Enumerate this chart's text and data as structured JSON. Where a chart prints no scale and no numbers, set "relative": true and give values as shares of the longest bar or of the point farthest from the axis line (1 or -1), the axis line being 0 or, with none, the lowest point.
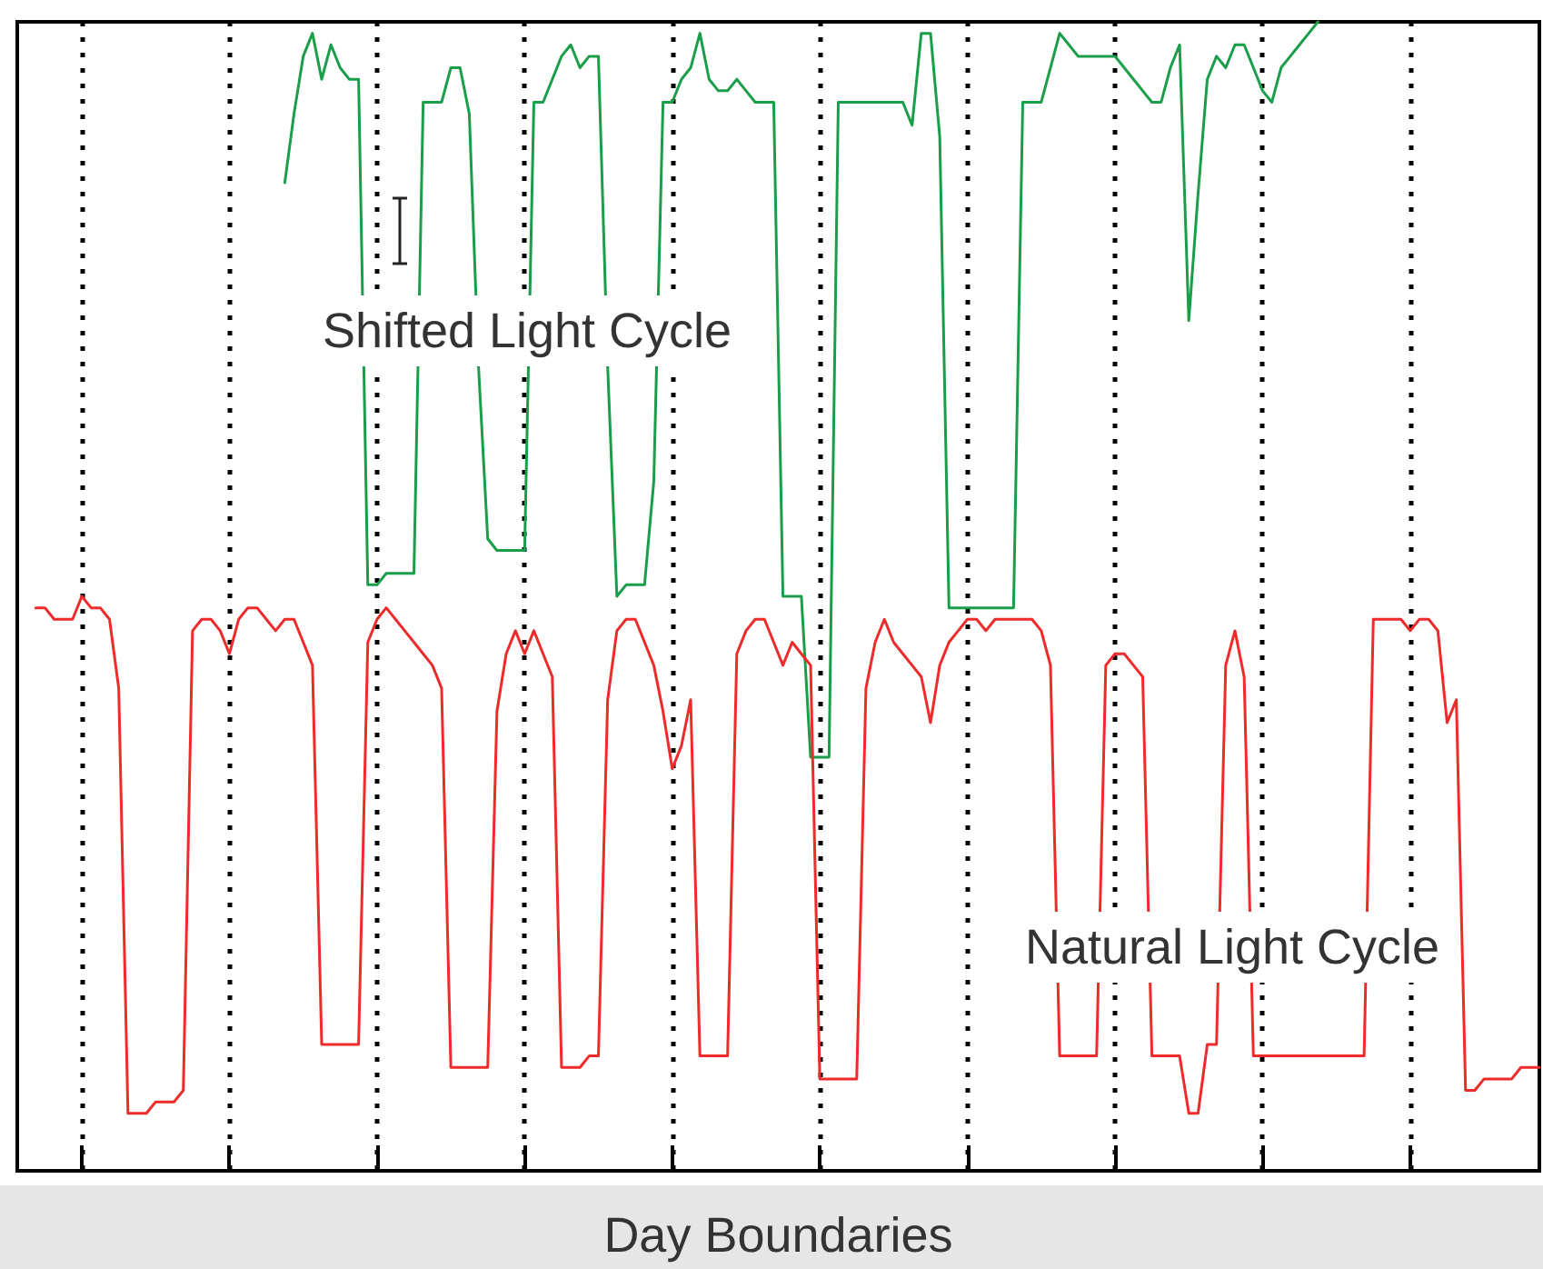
{
  "chart_data": {
    "type": "line",
    "relative": true,
    "xlabel": "Day Boundaries",
    "tick_labels": false,
    "grid": "x",
    "marker": "none",
    "line_style": "solid",
    "categories": [
      null,
      null,
      null,
      null,
      null,
      null,
      null,
      null,
      null,
      null,
      null,
      null,
      null,
      null,
      null,
      null,
      null,
      null,
      null,
      null,
      null,
      null,
      null,
      null,
      null,
      null,
      null,
      null,
      null,
      null,
      null,
      null,
      null,
      null,
      null,
      null,
      null,
      null,
      null,
      null,
      null,
      null,
      null,
      null,
      null,
      null,
      null,
      null,
      null,
      null,
      null,
      null,
      null,
      null,
      null,
      null,
      null,
      null,
      null,
      null,
      null,
      null,
      null,
      null,
      null,
      null,
      null,
      null,
      null,
      null,
      null,
      null,
      null,
      null,
      null,
      null,
      null,
      null,
      null,
      null,
      null,
      null,
      null,
      null,
      null,
      null,
      null,
      null,
      null,
      null,
      null,
      null,
      null,
      null,
      null,
      null,
      null,
      null,
      null,
      null,
      null,
      null,
      null,
      null,
      null,
      null,
      null,
      null,
      null,
      null,
      null,
      null,
      null,
      null,
      null,
      null,
      null,
      null,
      null,
      null,
      null,
      null,
      null,
      null,
      null,
      null,
      null,
      null,
      null,
      null,
      null,
      null,
      null,
      null,
      null,
      null,
      null,
      null,
      null,
      null,
      null,
      null,
      null,
      null,
      null,
      null,
      null,
      null,
      null,
      null,
      null,
      null,
      null,
      null,
      null,
      null,
      null,
      null,
      null,
      null,
      null,
      null,
      null,
      null,
      null,
      null
    ],
    "series": [
      {
        "name": "Shifted Light Cycle",
        "color": "#1a9e4a",
        "values": [
          null,
          null,
          null,
          null,
          null,
          null,
          null,
          null,
          null,
          null,
          null,
          null,
          null,
          null,
          null,
          null,
          null,
          null,
          null,
          null,
          null,
          null,
          null,
          null,
          null,
          null,
          null,
          null,
          null,
          0.86,
          0.92,
          0.97,
          0.99,
          0.95,
          0.98,
          0.96,
          0.95,
          0.95,
          0.51,
          0.51,
          0.52,
          0.52,
          0.52,
          0.52,
          0.93,
          0.93,
          0.93,
          0.96,
          0.96,
          0.92,
          0.7,
          0.55,
          0.54,
          0.54,
          0.54,
          0.54,
          0.93,
          0.93,
          0.95,
          0.97,
          0.98,
          0.96,
          0.97,
          0.97,
          0.7,
          0.5,
          0.51,
          0.51,
          0.51,
          0.6,
          0.93,
          0.93,
          0.95,
          0.96,
          0.99,
          0.95,
          0.94,
          0.94,
          0.95,
          0.94,
          0.93,
          0.93,
          0.93,
          0.5,
          0.5,
          0.5,
          0.36,
          0.36,
          0.36,
          0.93,
          0.93,
          0.93,
          0.93,
          0.93,
          0.93,
          0.93,
          0.93,
          0.91,
          0.99,
          0.99,
          0.9,
          0.49,
          0.49,
          0.49,
          0.49,
          0.49,
          0.49,
          0.49,
          0.49,
          0.93,
          0.93,
          0.93,
          0.96,
          0.99,
          0.98,
          0.97,
          0.97,
          0.97,
          0.97,
          0.97,
          0.96,
          0.95,
          0.94,
          0.93,
          0.93,
          0.96,
          0.98,
          0.74,
          0.85,
          0.95,
          0.97,
          0.96,
          0.98,
          0.98,
          0.96,
          0.94,
          0.93,
          0.96,
          0.97,
          0.98,
          0.99,
          1.0,
          null,
          null,
          null,
          null,
          null,
          null,
          null,
          null,
          null,
          null,
          null,
          null,
          null,
          null,
          null,
          null,
          null,
          null,
          null,
          null,
          null,
          null,
          null,
          null
        ]
      },
      {
        "name": "Natural Light Cycle",
        "color": "#ee2a2a",
        "values": [
          null,
          null,
          0.49,
          0.49,
          0.48,
          0.48,
          0.48,
          0.5,
          0.49,
          0.49,
          0.48,
          0.42,
          0.05,
          0.05,
          0.05,
          0.06,
          0.06,
          0.06,
          0.07,
          0.47,
          0.48,
          0.48,
          0.47,
          0.45,
          0.48,
          0.49,
          0.49,
          0.48,
          0.47,
          0.48,
          0.48,
          0.46,
          0.44,
          0.11,
          0.11,
          0.11,
          0.11,
          0.11,
          0.46,
          0.48,
          0.49,
          0.48,
          0.47,
          0.46,
          0.45,
          0.44,
          0.42,
          0.09,
          0.09,
          0.09,
          0.09,
          0.09,
          0.4,
          0.45,
          0.47,
          0.45,
          0.47,
          0.45,
          0.43,
          0.09,
          0.09,
          0.09,
          0.1,
          0.1,
          0.41,
          0.47,
          0.48,
          0.48,
          0.46,
          0.44,
          0.4,
          0.35,
          0.37,
          0.41,
          0.1,
          0.1,
          0.1,
          0.1,
          0.45,
          0.47,
          0.48,
          0.48,
          0.46,
          0.44,
          0.46,
          0.45,
          0.44,
          0.08,
          0.08,
          0.08,
          0.08,
          0.08,
          0.42,
          0.46,
          0.48,
          0.46,
          0.45,
          0.44,
          0.43,
          0.39,
          0.44,
          0.46,
          0.47,
          0.48,
          0.48,
          0.47,
          0.48,
          0.48,
          0.48,
          0.48,
          0.48,
          0.47,
          0.44,
          0.1,
          0.1,
          0.1,
          0.1,
          0.1,
          0.44,
          0.45,
          0.45,
          0.44,
          0.43,
          0.1,
          0.1,
          0.1,
          0.1,
          0.05,
          0.05,
          0.11,
          0.11,
          0.44,
          0.47,
          0.43,
          0.1,
          0.1,
          0.1,
          0.1,
          0.1,
          0.1,
          0.1,
          0.1,
          0.1,
          0.1,
          0.1,
          0.1,
          0.1,
          0.48,
          0.48,
          0.48,
          0.48,
          0.47,
          0.48,
          0.48,
          0.47,
          0.39,
          0.41,
          0.07,
          0.07,
          0.08,
          0.08,
          0.08,
          0.08,
          0.09,
          0.09,
          0.09
        ]
      }
    ]
  }
}
